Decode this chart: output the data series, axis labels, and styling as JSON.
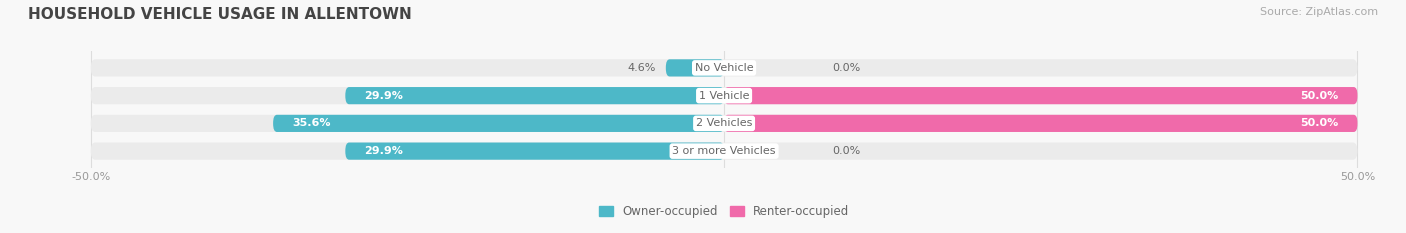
{
  "title": "HOUSEHOLD VEHICLE USAGE IN ALLENTOWN",
  "source": "Source: ZipAtlas.com",
  "categories": [
    "No Vehicle",
    "1 Vehicle",
    "2 Vehicles",
    "3 or more Vehicles"
  ],
  "owner_values": [
    4.6,
    29.9,
    35.6,
    29.9
  ],
  "renter_values": [
    0.0,
    50.0,
    50.0,
    0.0
  ],
  "owner_color": "#4db8c8",
  "renter_color": "#f06aaa",
  "bar_bg_color": "#ebebeb",
  "owner_label": "Owner-occupied",
  "renter_label": "Renter-occupied",
  "xlim_left": -50,
  "xlim_right": 50,
  "title_fontsize": 11,
  "source_fontsize": 8,
  "label_fontsize": 8,
  "value_fontsize": 8,
  "bar_height": 0.62,
  "background_color": "#f8f8f8",
  "grid_color": "#dddddd",
  "text_color_dark": "#666666",
  "text_color_light": "#ffffff"
}
